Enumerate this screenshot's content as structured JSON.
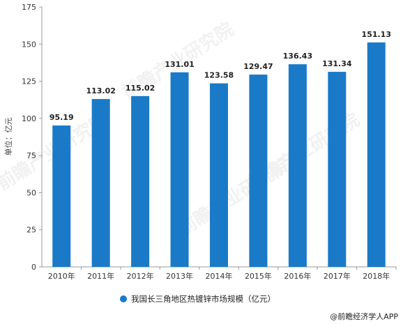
{
  "chart_data": {
    "type": "bar",
    "categories": [
      "2010年",
      "2011年",
      "2012年",
      "2013年",
      "2014年",
      "2015年",
      "2016年",
      "2017年",
      "2018年"
    ],
    "series": [
      {
        "name": "我国长三角地区热镀锌市场规模（亿元）",
        "values": [
          95.19,
          113.02,
          115.02,
          131.01,
          123.58,
          129.47,
          136.43,
          131.34,
          151.13
        ],
        "color": "#1a7ac7"
      }
    ],
    "value_labels": [
      "95.19",
      "113.02",
      "115.02",
      "131.01",
      "123.58",
      "129.47",
      "136.43",
      "131.34",
      "151.13"
    ],
    "ylabel": "单位：亿元",
    "ylim": [
      0,
      175
    ],
    "yticks": [
      0,
      25,
      50,
      75,
      100,
      125,
      150,
      175
    ],
    "grid": false,
    "legend_position": "bottom-center"
  },
  "credit": "@前瞻经济学人APP",
  "watermark": "前瞻产业研究院"
}
